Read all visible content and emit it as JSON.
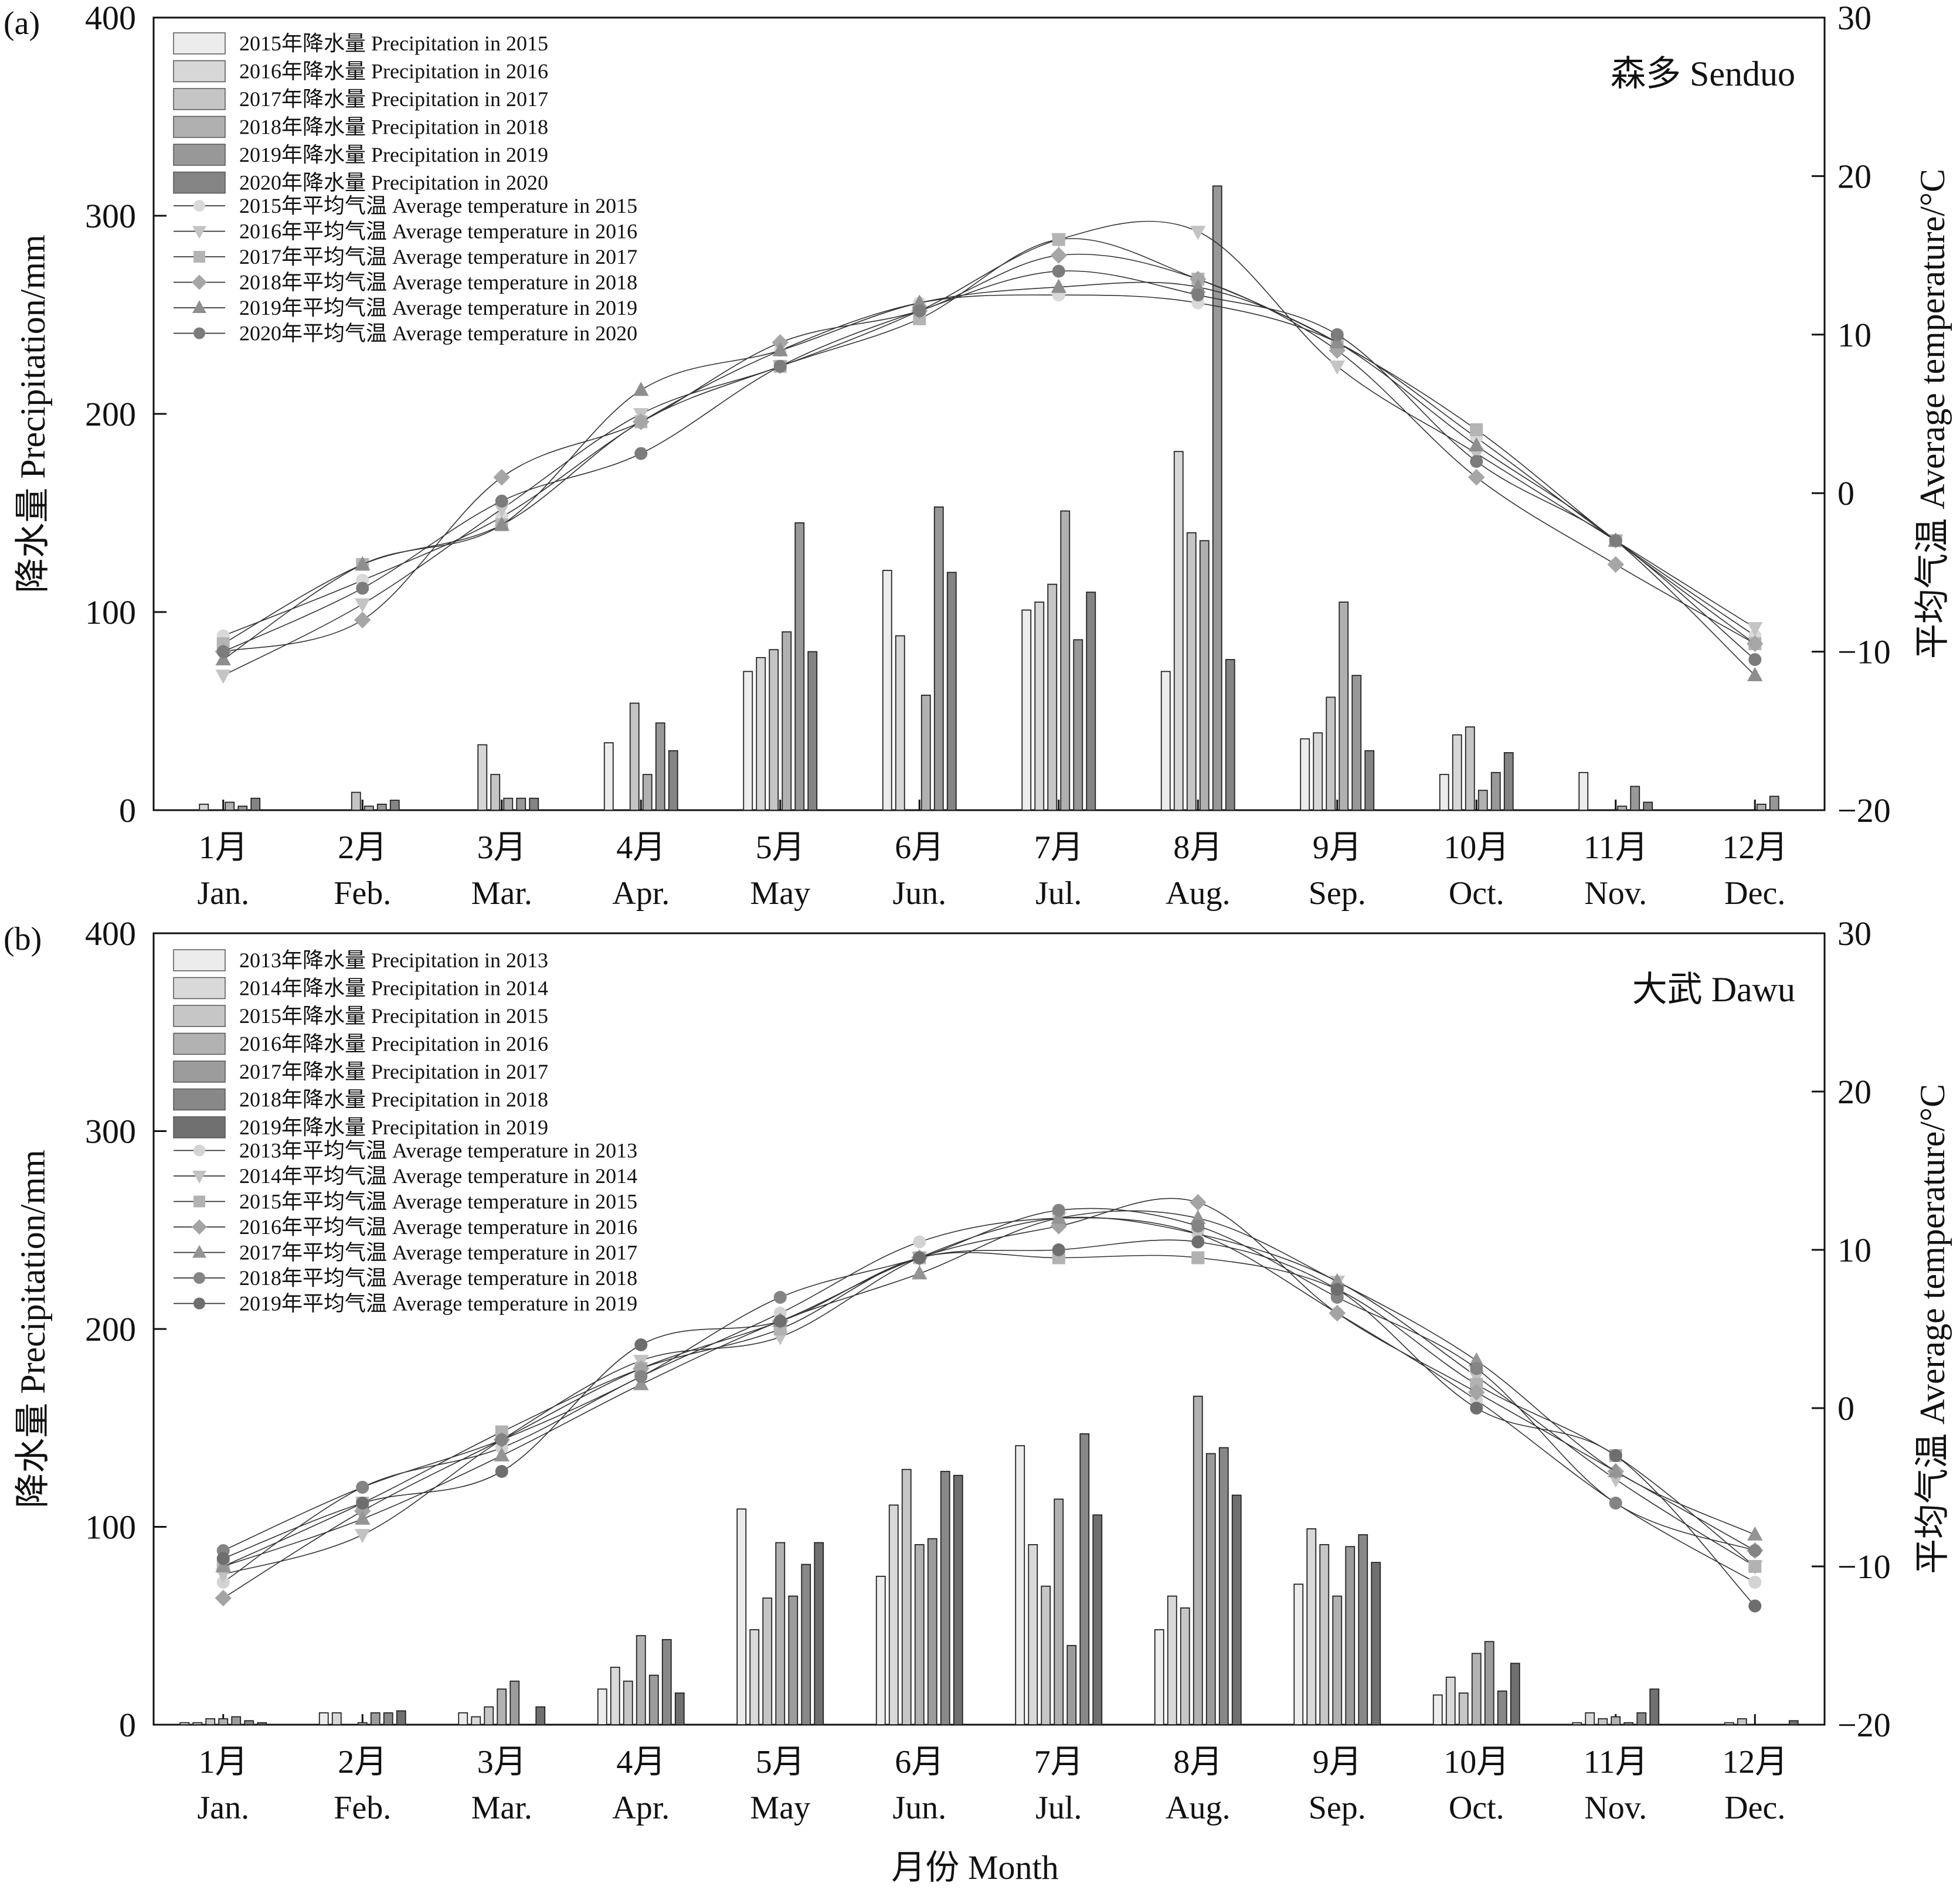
{
  "figure": {
    "xlabel": "月份 Month",
    "months_cn": [
      "1月",
      "2月",
      "3月",
      "4月",
      "5月",
      "6月",
      "7月",
      "8月",
      "9月",
      "10月",
      "11月",
      "12月"
    ],
    "months_en": [
      "Jan.",
      "Feb.",
      "Mar.",
      "Apr.",
      "May",
      "Jun.",
      "Jul.",
      "Aug.",
      "Sep.",
      "Oct.",
      "Nov.",
      "Dec."
    ]
  },
  "chart_data": [
    {
      "type": "bar",
      "panel_label": "(a)",
      "title": "森多 Senduo",
      "categories": [
        "1月 Jan.",
        "2月 Feb.",
        "3月 Mar.",
        "4月 Apr.",
        "5月 May",
        "6月 Jun.",
        "7月 Jul.",
        "8月 Aug.",
        "9月 Sep.",
        "10月 Oct.",
        "11月 Nov.",
        "12月 Dec."
      ],
      "ylabel": "降水量 Precipitation/mm",
      "ylim": [
        0,
        400
      ],
      "yticks": [
        "0",
        "100",
        "200",
        "300",
        "400"
      ],
      "y2label": "平均气温 Average temperature/°C",
      "y2lim": [
        -20,
        30
      ],
      "y2ticks": [
        "−20",
        "−10",
        "0",
        "10",
        "20",
        "30"
      ],
      "bar_colors": [
        "#ececec",
        "#d7d7d7",
        "#c5c5c5",
        "#b0b0b0",
        "#989898",
        "#848484"
      ],
      "line_colors": [
        "#d9d9d9",
        "#c4c4c4",
        "#b4b4b4",
        "#a6a6a6",
        "#8e8e8e",
        "#7c7c7c"
      ],
      "markers": [
        "circle",
        "tri-down",
        "square",
        "diamond",
        "tri-up",
        "circle"
      ],
      "precipitation": [
        {
          "name": "2015年降水量 Precipitation in 2015",
          "values": [
            0,
            0,
            0,
            34,
            70,
            121,
            101,
            70,
            36,
            18,
            19,
            0
          ]
        },
        {
          "name": "2016年降水量 Precipitation in 2016",
          "values": [
            3,
            0,
            33,
            0,
            77,
            88,
            105,
            181,
            39,
            38,
            0,
            0
          ]
        },
        {
          "name": "2017年降水量 Precipitation in 2017",
          "values": [
            0,
            9,
            18,
            54,
            81,
            0,
            114,
            140,
            57,
            42,
            0,
            0
          ]
        },
        {
          "name": "2018年降水量 Precipitation in 2018",
          "values": [
            4,
            2,
            6,
            18,
            90,
            58,
            151,
            136,
            105,
            10,
            2,
            3
          ]
        },
        {
          "name": "2019年降水量 Precipitation in 2019",
          "values": [
            2,
            3,
            6,
            44,
            145,
            153,
            86,
            315,
            68,
            19,
            12,
            7
          ]
        },
        {
          "name": "2020年降水量 Precipitation in 2020",
          "values": [
            6,
            5,
            6,
            30,
            80,
            120,
            110,
            76,
            30,
            29,
            4,
            0
          ]
        }
      ],
      "temperature": [
        {
          "name": "2015年平均气温 Average temperature in 2015",
          "values": [
            -9.0,
            -5.5,
            -1.5,
            4.5,
            9.0,
            12.0,
            12.5,
            12.0,
            9.5,
            3.5,
            -3.0,
            -9.0
          ]
        },
        {
          "name": "2016年平均气温 Average temperature in 2016",
          "values": [
            -11.5,
            -7.0,
            -1.0,
            5.0,
            8.0,
            11.5,
            16.0,
            16.5,
            8.0,
            2.5,
            -3.0,
            -8.5
          ]
        },
        {
          "name": "2017年平均气温 Average temperature in 2017",
          "values": [
            -9.5,
            -4.5,
            -2.0,
            4.5,
            8.0,
            11.0,
            16.0,
            13.5,
            9.5,
            4.0,
            -3.0,
            -9.5
          ]
        },
        {
          "name": "2018年平均气温 Average temperature in 2018",
          "values": [
            -10.0,
            -8.0,
            1.0,
            4.5,
            9.5,
            11.5,
            15.0,
            13.5,
            9.0,
            1.0,
            -4.5,
            -9.5
          ]
        },
        {
          "name": "2019年平均气温 Average temperature in 2019",
          "values": [
            -10.5,
            -4.5,
            -2.0,
            6.5,
            9.0,
            12.0,
            13.0,
            13.0,
            9.5,
            3.0,
            -3.0,
            -11.5
          ]
        },
        {
          "name": "2020年平均气温 Average temperature in 2020",
          "values": [
            -10.0,
            -6.0,
            -0.5,
            2.5,
            8.0,
            11.5,
            14.0,
            12.5,
            10.0,
            2.0,
            -3.0,
            -10.5
          ]
        }
      ]
    },
    {
      "type": "bar",
      "panel_label": "(b)",
      "title": "大武 Dawu",
      "categories": [
        "1月 Jan.",
        "2月 Feb.",
        "3月 Mar.",
        "4月 Apr.",
        "5月 May",
        "6月 Jun.",
        "7月 Jul.",
        "8月 Aug.",
        "9月 Sep.",
        "10月 Oct.",
        "11月 Nov.",
        "12月 Dec."
      ],
      "ylabel": "降水量 Precipitation/mm",
      "ylim": [
        0,
        400
      ],
      "yticks": [
        "0",
        "100",
        "200",
        "300",
        "400"
      ],
      "y2label": "平均气温 Average temperature/°C",
      "y2lim": [
        -20,
        30
      ],
      "y2ticks": [
        "−20",
        "−10",
        "0",
        "10",
        "20",
        "30"
      ],
      "bar_colors": [
        "#ececec",
        "#d9d9d9",
        "#c6c6c6",
        "#b2b2b2",
        "#9c9c9c",
        "#888888",
        "#707070"
      ],
      "line_colors": [
        "#d3d3d3",
        "#c2c2c2",
        "#b2b2b2",
        "#a4a4a4",
        "#949494",
        "#848484",
        "#6e6e6e"
      ],
      "markers": [
        "circle",
        "tri-down",
        "square",
        "diamond",
        "tri-up",
        "circle",
        "circle"
      ],
      "precipitation": [
        {
          "name": "2013年降水量 Precipitation in 2013",
          "values": [
            1,
            6,
            6,
            18,
            109,
            75,
            141,
            48,
            71,
            15,
            1,
            0
          ]
        },
        {
          "name": "2014年降水量 Precipitation in 2014",
          "values": [
            1,
            6,
            4,
            29,
            48,
            111,
            91,
            65,
            99,
            24,
            6,
            1
          ]
        },
        {
          "name": "2015年降水量 Precipitation in 2015",
          "values": [
            3,
            0,
            9,
            22,
            64,
            129,
            70,
            59,
            91,
            16,
            3,
            3
          ]
        },
        {
          "name": "2016年降水量 Precipitation in 2016",
          "values": [
            3,
            1,
            18,
            45,
            92,
            91,
            114,
            166,
            65,
            36,
            4,
            0
          ]
        },
        {
          "name": "2017年降水量 Precipitation in 2017",
          "values": [
            4,
            6,
            22,
            25,
            65,
            94,
            40,
            137,
            90,
            42,
            1,
            0
          ]
        },
        {
          "name": "2018年降水量 Precipitation in 2018",
          "values": [
            2,
            6,
            0,
            43,
            81,
            128,
            147,
            140,
            96,
            17,
            6,
            0
          ]
        },
        {
          "name": "2019年降水量 Precipitation in 2019",
          "values": [
            1,
            7,
            9,
            16,
            92,
            126,
            106,
            116,
            82,
            31,
            18,
            2
          ]
        }
      ],
      "temperature": [
        {
          "name": "2013年平均气温 Average temperature in 2013",
          "values": [
            -11.0,
            -5.0,
            -2.5,
            2.0,
            6.0,
            10.5,
            12.0,
            11.0,
            6.0,
            0.5,
            -6.0,
            -11.0
          ]
        },
        {
          "name": "2014年平均气温 Average temperature in 2014",
          "values": [
            -10.5,
            -8.0,
            -2.0,
            3.0,
            4.5,
            9.5,
            12.0,
            11.0,
            8.0,
            2.0,
            -4.5,
            -10.0
          ]
        },
        {
          "name": "2015年平均气温 Average temperature in 2015",
          "values": [
            -10.0,
            -6.0,
            -1.5,
            2.5,
            5.0,
            9.5,
            9.5,
            9.5,
            7.5,
            1.5,
            -3.0,
            -10.0
          ]
        },
        {
          "name": "2016年平均气温 Average temperature in 2016",
          "values": [
            -12.0,
            -6.5,
            -2.0,
            2.5,
            5.5,
            9.5,
            11.5,
            13.0,
            6.0,
            1.0,
            -4.0,
            -9.0
          ]
        },
        {
          "name": "2017年平均气温 Average temperature in 2017",
          "values": [
            -10.0,
            -7.0,
            -3.0,
            1.5,
            5.5,
            8.5,
            12.0,
            12.0,
            8.0,
            3.0,
            -4.0,
            -8.0
          ]
        },
        {
          "name": "2018年平均气温 Average temperature in 2018",
          "values": [
            -9.0,
            -5.0,
            -2.0,
            2.0,
            7.0,
            9.5,
            12.5,
            11.5,
            7.0,
            2.5,
            -6.0,
            -9.0
          ]
        },
        {
          "name": "2019年平均气温 Average temperature in 2019",
          "values": [
            -9.5,
            -6.0,
            -4.0,
            4.0,
            5.5,
            9.5,
            10.0,
            10.5,
            7.5,
            0.0,
            -3.0,
            -12.5
          ]
        }
      ]
    }
  ]
}
